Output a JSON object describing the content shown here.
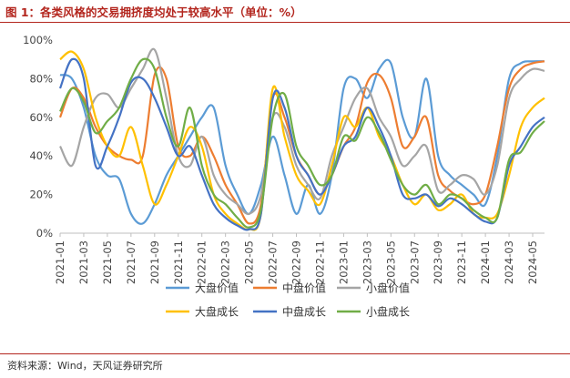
{
  "figure": {
    "title": "图 1：各类风格的交易拥挤度均处于较高水平（单位：%）",
    "source": "资料来源：Wind，天风证券研究所"
  },
  "chart_data": {
    "type": "line",
    "title": "",
    "xlabel": "",
    "ylabel": "",
    "ylim": [
      0,
      100
    ],
    "y_ticks": [
      0,
      20,
      40,
      60,
      80,
      100
    ],
    "y_tick_labels": [
      "0%",
      "20%",
      "40%",
      "60%",
      "80%",
      "100%"
    ],
    "x_ticks": [
      "2021-01",
      "2021-03",
      "2021-05",
      "2021-07",
      "2021-09",
      "2021-11",
      "2022-01",
      "2022-03",
      "2022-05",
      "2022-07",
      "2022-09",
      "2022-11",
      "2023-01",
      "2023-03",
      "2023-05",
      "2023-07",
      "2023-09",
      "2023-11",
      "2024-01",
      "2024-03",
      "2024-05"
    ],
    "x_start": "2021-01",
    "x_end": "2024-06",
    "grid": false,
    "legend_position": "bottom",
    "series": [
      {
        "name": "大盘价值",
        "color": "#5b9bd5",
        "points": [
          [
            "2021-01",
            82
          ],
          [
            "2021-02",
            80
          ],
          [
            "2021-03",
            65
          ],
          [
            "2021-04",
            40
          ],
          [
            "2021-05",
            30
          ],
          [
            "2021-06",
            28
          ],
          [
            "2021-07",
            10
          ],
          [
            "2021-08",
            5
          ],
          [
            "2021-09",
            15
          ],
          [
            "2021-10",
            30
          ],
          [
            "2021-11",
            40
          ],
          [
            "2021-12",
            50
          ],
          [
            "2022-01",
            60
          ],
          [
            "2022-02",
            65
          ],
          [
            "2022-03",
            35
          ],
          [
            "2022-04",
            20
          ],
          [
            "2022-05",
            10
          ],
          [
            "2022-06",
            25
          ],
          [
            "2022-07",
            50
          ],
          [
            "2022-08",
            30
          ],
          [
            "2022-09",
            10
          ],
          [
            "2022-10",
            25
          ],
          [
            "2022-11",
            10
          ],
          [
            "2022-12",
            30
          ],
          [
            "2023-01",
            75
          ],
          [
            "2023-02",
            80
          ],
          [
            "2023-03",
            70
          ],
          [
            "2023-04",
            85
          ],
          [
            "2023-05",
            88
          ],
          [
            "2023-06",
            60
          ],
          [
            "2023-07",
            50
          ],
          [
            "2023-08",
            80
          ],
          [
            "2023-09",
            40
          ],
          [
            "2023-10",
            30
          ],
          [
            "2023-11",
            25
          ],
          [
            "2023-12",
            20
          ],
          [
            "2024-01",
            15
          ],
          [
            "2024-02",
            40
          ],
          [
            "2024-03",
            80
          ],
          [
            "2024-04",
            88
          ],
          [
            "2024-05",
            89
          ],
          [
            "2024-06",
            89
          ]
        ]
      },
      {
        "name": "中盘价值",
        "color": "#ed7d31",
        "points": [
          [
            "2021-01",
            60
          ],
          [
            "2021-02",
            75
          ],
          [
            "2021-03",
            70
          ],
          [
            "2021-04",
            55
          ],
          [
            "2021-05",
            45
          ],
          [
            "2021-06",
            40
          ],
          [
            "2021-07",
            38
          ],
          [
            "2021-08",
            40
          ],
          [
            "2021-09",
            82
          ],
          [
            "2021-10",
            80
          ],
          [
            "2021-11",
            45
          ],
          [
            "2021-12",
            40
          ],
          [
            "2022-01",
            50
          ],
          [
            "2022-02",
            40
          ],
          [
            "2022-03",
            25
          ],
          [
            "2022-04",
            15
          ],
          [
            "2022-05",
            5
          ],
          [
            "2022-06",
            15
          ],
          [
            "2022-07",
            70
          ],
          [
            "2022-08",
            60
          ],
          [
            "2022-09",
            40
          ],
          [
            "2022-10",
            30
          ],
          [
            "2022-11",
            20
          ],
          [
            "2022-12",
            30
          ],
          [
            "2023-01",
            45
          ],
          [
            "2023-02",
            55
          ],
          [
            "2023-03",
            78
          ],
          [
            "2023-04",
            82
          ],
          [
            "2023-05",
            70
          ],
          [
            "2023-06",
            45
          ],
          [
            "2023-07",
            50
          ],
          [
            "2023-08",
            60
          ],
          [
            "2023-09",
            30
          ],
          [
            "2023-10",
            22
          ],
          [
            "2023-11",
            18
          ],
          [
            "2023-12",
            15
          ],
          [
            "2024-01",
            20
          ],
          [
            "2024-02",
            45
          ],
          [
            "2024-03",
            75
          ],
          [
            "2024-04",
            85
          ],
          [
            "2024-05",
            88
          ],
          [
            "2024-06",
            89
          ]
        ]
      },
      {
        "name": "小盘价值",
        "color": "#a5a5a5",
        "points": [
          [
            "2021-01",
            45
          ],
          [
            "2021-02",
            35
          ],
          [
            "2021-03",
            55
          ],
          [
            "2021-04",
            70
          ],
          [
            "2021-05",
            72
          ],
          [
            "2021-06",
            65
          ],
          [
            "2021-07",
            75
          ],
          [
            "2021-08",
            85
          ],
          [
            "2021-09",
            95
          ],
          [
            "2021-10",
            70
          ],
          [
            "2021-11",
            40
          ],
          [
            "2021-12",
            35
          ],
          [
            "2022-01",
            50
          ],
          [
            "2022-02",
            30
          ],
          [
            "2022-03",
            20
          ],
          [
            "2022-04",
            15
          ],
          [
            "2022-05",
            10
          ],
          [
            "2022-06",
            20
          ],
          [
            "2022-07",
            60
          ],
          [
            "2022-08",
            55
          ],
          [
            "2022-09",
            35
          ],
          [
            "2022-10",
            25
          ],
          [
            "2022-11",
            18
          ],
          [
            "2022-12",
            40
          ],
          [
            "2023-01",
            55
          ],
          [
            "2023-02",
            70
          ],
          [
            "2023-03",
            75
          ],
          [
            "2023-04",
            60
          ],
          [
            "2023-05",
            50
          ],
          [
            "2023-06",
            35
          ],
          [
            "2023-07",
            40
          ],
          [
            "2023-08",
            45
          ],
          [
            "2023-09",
            22
          ],
          [
            "2023-10",
            25
          ],
          [
            "2023-11",
            30
          ],
          [
            "2023-12",
            28
          ],
          [
            "2024-01",
            20
          ],
          [
            "2024-02",
            35
          ],
          [
            "2024-03",
            70
          ],
          [
            "2024-04",
            80
          ],
          [
            "2024-05",
            85
          ],
          [
            "2024-06",
            84
          ]
        ]
      },
      {
        "name": "大盘成长",
        "color": "#ffc000",
        "points": [
          [
            "2021-01",
            90
          ],
          [
            "2021-02",
            94
          ],
          [
            "2021-03",
            85
          ],
          [
            "2021-04",
            60
          ],
          [
            "2021-05",
            45
          ],
          [
            "2021-06",
            40
          ],
          [
            "2021-07",
            55
          ],
          [
            "2021-08",
            35
          ],
          [
            "2021-09",
            15
          ],
          [
            "2021-10",
            25
          ],
          [
            "2021-11",
            40
          ],
          [
            "2021-12",
            55
          ],
          [
            "2022-01",
            45
          ],
          [
            "2022-02",
            20
          ],
          [
            "2022-03",
            10
          ],
          [
            "2022-04",
            5
          ],
          [
            "2022-05",
            2
          ],
          [
            "2022-06",
            10
          ],
          [
            "2022-07",
            75
          ],
          [
            "2022-08",
            50
          ],
          [
            "2022-09",
            30
          ],
          [
            "2022-10",
            22
          ],
          [
            "2022-11",
            15
          ],
          [
            "2022-12",
            35
          ],
          [
            "2023-01",
            60
          ],
          [
            "2023-02",
            55
          ],
          [
            "2023-03",
            65
          ],
          [
            "2023-04",
            50
          ],
          [
            "2023-05",
            40
          ],
          [
            "2023-06",
            25
          ],
          [
            "2023-07",
            15
          ],
          [
            "2023-08",
            20
          ],
          [
            "2023-09",
            12
          ],
          [
            "2023-10",
            15
          ],
          [
            "2023-11",
            20
          ],
          [
            "2023-12",
            10
          ],
          [
            "2024-01",
            8
          ],
          [
            "2024-02",
            10
          ],
          [
            "2024-03",
            30
          ],
          [
            "2024-04",
            55
          ],
          [
            "2024-05",
            65
          ],
          [
            "2024-06",
            70
          ]
        ]
      },
      {
        "name": "中盘成长",
        "color": "#4472c4",
        "points": [
          [
            "2021-01",
            75
          ],
          [
            "2021-02",
            90
          ],
          [
            "2021-03",
            80
          ],
          [
            "2021-04",
            35
          ],
          [
            "2021-05",
            45
          ],
          [
            "2021-06",
            60
          ],
          [
            "2021-07",
            78
          ],
          [
            "2021-08",
            80
          ],
          [
            "2021-09",
            70
          ],
          [
            "2021-10",
            55
          ],
          [
            "2021-11",
            40
          ],
          [
            "2021-12",
            45
          ],
          [
            "2022-01",
            30
          ],
          [
            "2022-02",
            15
          ],
          [
            "2022-03",
            8
          ],
          [
            "2022-04",
            4
          ],
          [
            "2022-05",
            2
          ],
          [
            "2022-06",
            10
          ],
          [
            "2022-07",
            70
          ],
          [
            "2022-08",
            65
          ],
          [
            "2022-09",
            40
          ],
          [
            "2022-10",
            30
          ],
          [
            "2022-11",
            20
          ],
          [
            "2022-12",
            30
          ],
          [
            "2023-01",
            45
          ],
          [
            "2023-02",
            50
          ],
          [
            "2023-03",
            65
          ],
          [
            "2023-04",
            55
          ],
          [
            "2023-05",
            40
          ],
          [
            "2023-06",
            20
          ],
          [
            "2023-07",
            18
          ],
          [
            "2023-08",
            20
          ],
          [
            "2023-09",
            14
          ],
          [
            "2023-10",
            18
          ],
          [
            "2023-11",
            15
          ],
          [
            "2023-12",
            10
          ],
          [
            "2024-01",
            6
          ],
          [
            "2024-02",
            8
          ],
          [
            "2024-03",
            35
          ],
          [
            "2024-04",
            45
          ],
          [
            "2024-05",
            55
          ],
          [
            "2024-06",
            60
          ]
        ]
      },
      {
        "name": "小盘成长",
        "color": "#70ad47",
        "points": [
          [
            "2021-01",
            63
          ],
          [
            "2021-02",
            75
          ],
          [
            "2021-03",
            68
          ],
          [
            "2021-04",
            52
          ],
          [
            "2021-05",
            58
          ],
          [
            "2021-06",
            65
          ],
          [
            "2021-07",
            80
          ],
          [
            "2021-08",
            90
          ],
          [
            "2021-09",
            85
          ],
          [
            "2021-10",
            60
          ],
          [
            "2021-11",
            45
          ],
          [
            "2021-12",
            65
          ],
          [
            "2022-01",
            35
          ],
          [
            "2022-02",
            20
          ],
          [
            "2022-03",
            15
          ],
          [
            "2022-04",
            8
          ],
          [
            "2022-05",
            3
          ],
          [
            "2022-06",
            12
          ],
          [
            "2022-07",
            60
          ],
          [
            "2022-08",
            72
          ],
          [
            "2022-09",
            45
          ],
          [
            "2022-10",
            35
          ],
          [
            "2022-11",
            25
          ],
          [
            "2022-12",
            30
          ],
          [
            "2023-01",
            50
          ],
          [
            "2023-02",
            48
          ],
          [
            "2023-03",
            60
          ],
          [
            "2023-04",
            52
          ],
          [
            "2023-05",
            38
          ],
          [
            "2023-06",
            25
          ],
          [
            "2023-07",
            20
          ],
          [
            "2023-08",
            25
          ],
          [
            "2023-09",
            15
          ],
          [
            "2023-10",
            20
          ],
          [
            "2023-11",
            18
          ],
          [
            "2023-12",
            12
          ],
          [
            "2024-01",
            8
          ],
          [
            "2024-02",
            8
          ],
          [
            "2024-03",
            38
          ],
          [
            "2024-04",
            42
          ],
          [
            "2024-05",
            52
          ],
          [
            "2024-06",
            58
          ]
        ]
      }
    ]
  }
}
